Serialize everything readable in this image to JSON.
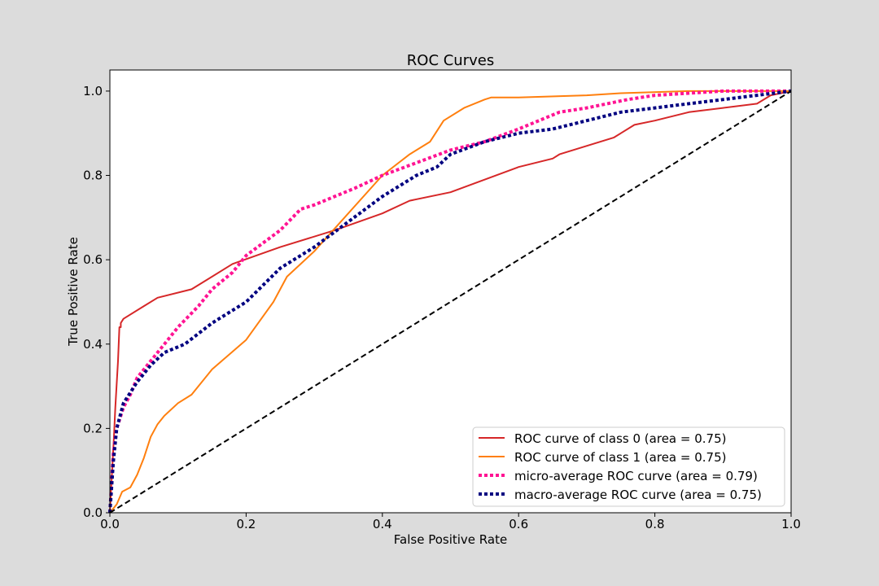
{
  "chart_data": {
    "type": "line",
    "title": "ROC Curves",
    "xlabel": "False Positive Rate",
    "ylabel": "True Positive Rate",
    "xlim": [
      0.0,
      1.0
    ],
    "ylim": [
      0.0,
      1.05
    ],
    "xticks": [
      0.0,
      0.2,
      0.4,
      0.6,
      0.8,
      1.0
    ],
    "yticks": [
      0.0,
      0.2,
      0.4,
      0.6,
      0.8,
      1.0
    ],
    "xtick_labels": [
      "0.0",
      "0.2",
      "0.4",
      "0.6",
      "0.8",
      "1.0"
    ],
    "ytick_labels": [
      "0.0",
      "0.2",
      "0.4",
      "0.6",
      "0.8",
      "1.0"
    ],
    "grid": false,
    "legend_position": "lower-right",
    "series": [
      {
        "name": "ROC curve of class 0 (area = 0.75)",
        "color": "#d62728",
        "style": "solid",
        "x": [
          0.0,
          0.004,
          0.006,
          0.008,
          0.012,
          0.014,
          0.016,
          0.016,
          0.02,
          0.05,
          0.07,
          0.12,
          0.18,
          0.25,
          0.33,
          0.4,
          0.44,
          0.5,
          0.6,
          0.65,
          0.66,
          0.74,
          0.75,
          0.77,
          0.8,
          0.85,
          0.9,
          0.95,
          0.97,
          1.0
        ],
        "y": [
          0.0,
          0.12,
          0.18,
          0.25,
          0.36,
          0.44,
          0.44,
          0.45,
          0.46,
          0.49,
          0.51,
          0.53,
          0.59,
          0.63,
          0.67,
          0.71,
          0.74,
          0.76,
          0.82,
          0.84,
          0.85,
          0.89,
          0.9,
          0.92,
          0.93,
          0.95,
          0.96,
          0.97,
          0.99,
          1.0
        ]
      },
      {
        "name": "ROC curve of class 1 (area = 0.75)",
        "color": "#ff7f0e",
        "style": "solid",
        "x": [
          0.0,
          0.01,
          0.018,
          0.03,
          0.04,
          0.05,
          0.06,
          0.07,
          0.08,
          0.1,
          0.12,
          0.15,
          0.2,
          0.24,
          0.26,
          0.3,
          0.35,
          0.4,
          0.44,
          0.47,
          0.49,
          0.52,
          0.55,
          0.56,
          0.6,
          0.7,
          0.75,
          0.85,
          1.0
        ],
        "y": [
          0.0,
          0.02,
          0.05,
          0.06,
          0.09,
          0.13,
          0.18,
          0.21,
          0.23,
          0.26,
          0.28,
          0.34,
          0.41,
          0.5,
          0.56,
          0.62,
          0.71,
          0.8,
          0.85,
          0.88,
          0.93,
          0.96,
          0.98,
          0.985,
          0.985,
          0.99,
          0.995,
          1.0,
          1.0
        ]
      },
      {
        "name": "micro-average ROC curve (area = 0.79)",
        "color": "#ff1493",
        "style": "dotted",
        "x": [
          0.0,
          0.005,
          0.01,
          0.02,
          0.03,
          0.04,
          0.06,
          0.08,
          0.1,
          0.13,
          0.15,
          0.18,
          0.2,
          0.25,
          0.28,
          0.3,
          0.33,
          0.36,
          0.4,
          0.45,
          0.5,
          0.55,
          0.6,
          0.66,
          0.7,
          0.76,
          0.8,
          0.85,
          0.9,
          0.95,
          1.0
        ],
        "y": [
          0.0,
          0.14,
          0.2,
          0.25,
          0.28,
          0.32,
          0.36,
          0.4,
          0.44,
          0.49,
          0.53,
          0.57,
          0.61,
          0.67,
          0.72,
          0.73,
          0.75,
          0.77,
          0.8,
          0.83,
          0.86,
          0.88,
          0.91,
          0.95,
          0.96,
          0.98,
          0.99,
          0.995,
          1.0,
          1.0,
          1.0
        ]
      },
      {
        "name": "macro-average ROC curve (area = 0.75)",
        "color": "#000080",
        "style": "dotted",
        "x": [
          0.0,
          0.005,
          0.01,
          0.02,
          0.04,
          0.06,
          0.08,
          0.11,
          0.15,
          0.2,
          0.25,
          0.3,
          0.35,
          0.4,
          0.45,
          0.48,
          0.5,
          0.55,
          0.6,
          0.65,
          0.7,
          0.75,
          0.8,
          0.85,
          0.9,
          0.95,
          1.0
        ],
        "y": [
          0.0,
          0.12,
          0.2,
          0.26,
          0.31,
          0.35,
          0.38,
          0.4,
          0.45,
          0.5,
          0.58,
          0.63,
          0.69,
          0.75,
          0.8,
          0.82,
          0.85,
          0.88,
          0.9,
          0.91,
          0.93,
          0.95,
          0.96,
          0.97,
          0.98,
          0.99,
          1.0
        ]
      },
      {
        "name": "",
        "color": "#000000",
        "style": "dashed",
        "x": [
          0.0,
          1.0
        ],
        "y": [
          0.0,
          1.0
        ]
      }
    ]
  }
}
